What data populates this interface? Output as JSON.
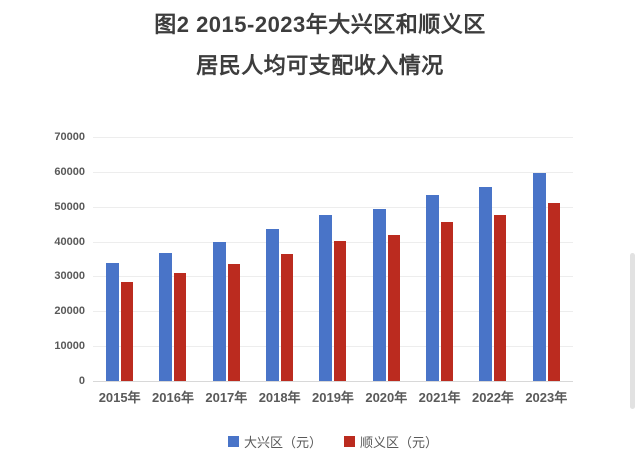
{
  "page": {
    "background": "#ffffff"
  },
  "title": {
    "line1": "图2 2015-2023年大兴区和顺义区",
    "line2": "居民人均可支配收入情况"
  },
  "chart_data": {
    "type": "bar",
    "title": "图2 2015-2023年大兴区和顺义区居民人均可支配收入情况",
    "categories": [
      "2015年",
      "2016年",
      "2017年",
      "2018年",
      "2019年",
      "2020年",
      "2021年",
      "2022年",
      "2023年"
    ],
    "series": [
      {
        "name": "大兴区（元）",
        "color": "#4974c8",
        "values": [
          33800,
          36600,
          40000,
          43700,
          47600,
          49400,
          53500,
          55800,
          59600
        ]
      },
      {
        "name": "顺义区（元）",
        "color": "#bb2b1f",
        "values": [
          28400,
          31000,
          33700,
          36400,
          40100,
          41900,
          45700,
          47700,
          51200
        ]
      }
    ],
    "xlabel": "",
    "ylabel": "",
    "ylim": [
      0,
      70000
    ],
    "ytick_interval": 10000,
    "ytick_labels": [
      "0",
      "10000",
      "20000",
      "30000",
      "40000",
      "50000",
      "60000",
      "70000"
    ],
    "grid": true,
    "legend_position": "bottom"
  },
  "ui": {
    "grid_color": "#ededed",
    "baseline_color": "#d8d8d8",
    "axis_text_color": "#595959",
    "title_color": "#3d3d3d",
    "scrollbar_color": "#e2e2e2"
  }
}
